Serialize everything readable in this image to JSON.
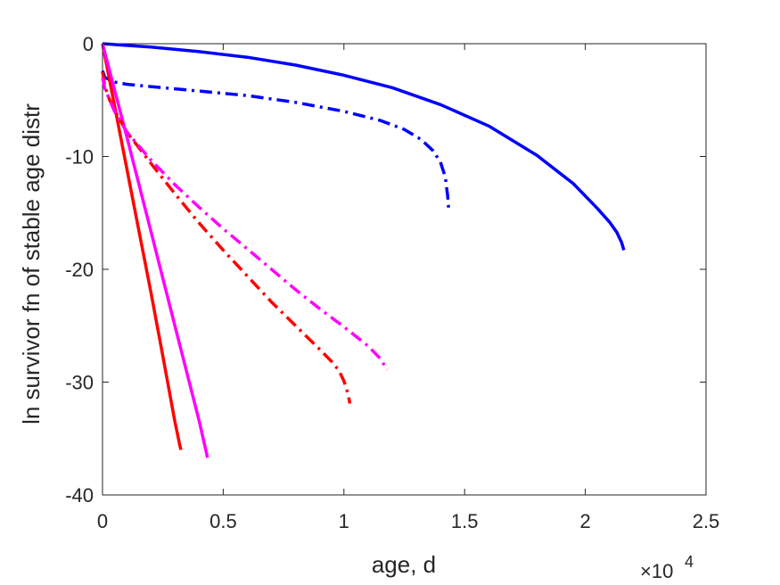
{
  "chart_data": {
    "type": "line",
    "title": "",
    "xlabel": "age, d",
    "ylabel": "ln survivor fn of stable age distr",
    "x_exponent_label": "×10",
    "x_exponent_power": "4",
    "xlim": [
      0,
      25000
    ],
    "ylim": [
      -40,
      0
    ],
    "xticks": [
      0,
      5000,
      10000,
      15000,
      20000,
      25000
    ],
    "xtick_labels": [
      "0",
      "0.5",
      "1",
      "1.5",
      "2",
      "2.5"
    ],
    "yticks": [
      0,
      -10,
      -20,
      -30,
      -40
    ],
    "ytick_labels": [
      "0",
      "-10",
      "-20",
      "-30",
      "-40"
    ],
    "grid": false,
    "legend": "none",
    "series": [
      {
        "color": "#0000ff",
        "style": "solid",
        "x": [
          0,
          2000,
          4000,
          6000,
          8000,
          10000,
          12000,
          14000,
          16000,
          18000,
          19500,
          20500,
          21000,
          21300,
          21500,
          21600
        ],
        "y": [
          0,
          -0.3,
          -0.7,
          -1.2,
          -1.9,
          -2.8,
          -3.9,
          -5.4,
          -7.3,
          -9.9,
          -12.4,
          -14.6,
          -15.8,
          -16.7,
          -17.6,
          -18.3
        ]
      },
      {
        "color": "#0000ff",
        "style": "dashdot",
        "x": [
          0,
          100,
          500,
          1000,
          2000,
          4000,
          6000,
          8000,
          10000,
          11500,
          12500,
          13200,
          13700,
          14000,
          14200,
          14300,
          14350
        ],
        "y": [
          -2.4,
          -3.0,
          -3.4,
          -3.6,
          -3.8,
          -4.2,
          -4.6,
          -5.2,
          -6.0,
          -6.8,
          -7.6,
          -8.5,
          -9.5,
          -10.5,
          -11.8,
          -13.5,
          -15.0
        ]
      },
      {
        "color": "#ff0000",
        "style": "solid",
        "x": [
          0,
          500,
          1000,
          1500,
          2000,
          2500,
          3000,
          3200,
          3250
        ],
        "y": [
          0,
          -5.5,
          -11.0,
          -16.5,
          -22.0,
          -27.7,
          -33.5,
          -35.6,
          -36.0
        ]
      },
      {
        "color": "#ff00ff",
        "style": "solid",
        "x": [
          0,
          1000,
          2000,
          3000,
          4000,
          4300,
          4350
        ],
        "y": [
          0,
          -8.2,
          -16.6,
          -25.0,
          -33.4,
          -36.2,
          -36.7
        ]
      },
      {
        "color": "#ff0000",
        "style": "dashdot",
        "x": [
          0,
          100,
          300,
          500,
          1000,
          2000,
          3000,
          4000,
          5000,
          6000,
          7000,
          8000,
          9000,
          9500,
          9800,
          10000,
          10150,
          10250
        ],
        "y": [
          -2.5,
          -3.8,
          -5.0,
          -5.9,
          -7.8,
          -10.6,
          -13.3,
          -15.9,
          -18.3,
          -20.6,
          -22.9,
          -25.0,
          -27.1,
          -28.2,
          -29.0,
          -29.9,
          -30.9,
          -31.9
        ]
      },
      {
        "color": "#ff00ff",
        "style": "dashdot",
        "x": [
          0,
          100,
          300,
          500,
          1000,
          2000,
          3000,
          4000,
          5000,
          6000,
          7000,
          8000,
          9000,
          10000,
          11000,
          11500,
          11800
        ],
        "y": [
          -3.0,
          -4.0,
          -5.0,
          -6.0,
          -7.8,
          -10.3,
          -12.5,
          -14.5,
          -16.4,
          -18.2,
          -20.0,
          -21.8,
          -23.5,
          -25.1,
          -26.8,
          -27.9,
          -28.9
        ]
      }
    ]
  }
}
